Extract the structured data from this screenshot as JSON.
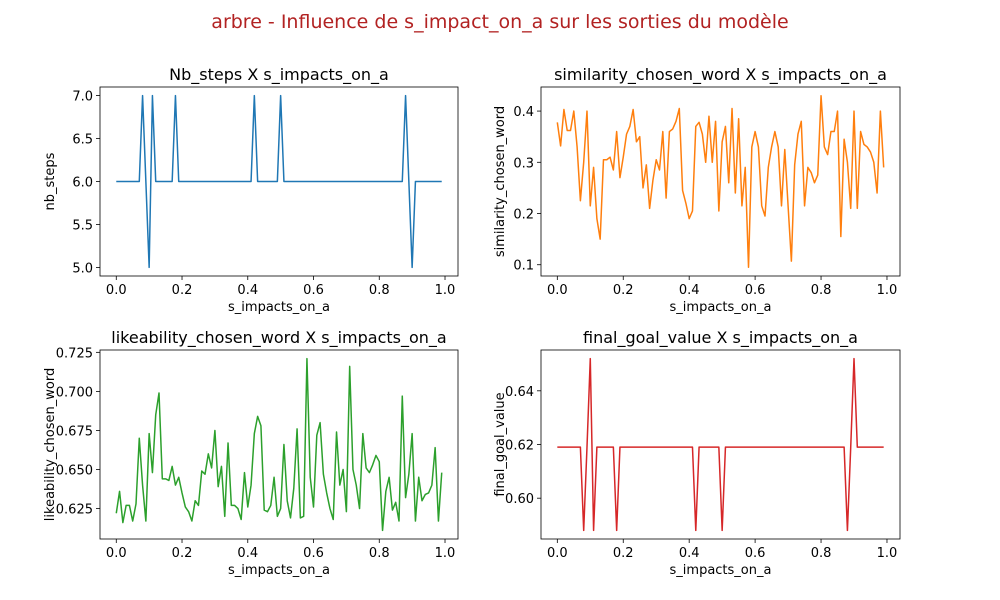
{
  "title": "arbre - Influence de s_impact_on_a sur les sorties du modèle",
  "chart_data": [
    {
      "type": "line",
      "title": "Nb_steps X s_impacts_on_a",
      "x_label": "s_impacts_on_a",
      "y_label": "nb_steps",
      "color": "#1f77b4",
      "x": [
        0,
        0.01,
        0.02,
        0.03,
        0.04,
        0.05,
        0.06,
        0.07,
        0.08,
        0.09,
        0.1,
        0.11,
        0.12,
        0.13,
        0.14,
        0.15,
        0.16,
        0.17,
        0.18,
        0.19,
        0.2,
        0.21,
        0.22,
        0.23,
        0.24,
        0.25,
        0.26,
        0.27,
        0.28,
        0.29,
        0.3,
        0.31,
        0.32,
        0.33,
        0.34,
        0.35,
        0.36,
        0.37,
        0.38,
        0.39,
        0.4,
        0.41,
        0.42,
        0.43,
        0.44,
        0.45,
        0.46,
        0.47,
        0.48,
        0.49,
        0.5,
        0.51,
        0.52,
        0.53,
        0.54,
        0.55,
        0.56,
        0.57,
        0.58,
        0.59,
        0.6,
        0.61,
        0.62,
        0.63,
        0.64,
        0.65,
        0.66,
        0.67,
        0.68,
        0.69,
        0.7,
        0.71,
        0.72,
        0.73,
        0.74,
        0.75,
        0.76,
        0.77,
        0.78,
        0.79,
        0.8,
        0.81,
        0.82,
        0.83,
        0.84,
        0.85,
        0.86,
        0.87,
        0.88,
        0.89,
        0.9,
        0.91,
        0.92,
        0.93,
        0.94,
        0.95,
        0.96,
        0.97,
        0.98,
        0.99
      ],
      "values": [
        6,
        6,
        6,
        6,
        6,
        6,
        6,
        6,
        7,
        6,
        5,
        7,
        6,
        6,
        6,
        6,
        6,
        6,
        7,
        6,
        6,
        6,
        6,
        6,
        6,
        6,
        6,
        6,
        6,
        6,
        6,
        6,
        6,
        6,
        6,
        6,
        6,
        6,
        6,
        6,
        6,
        6,
        7,
        6,
        6,
        6,
        6,
        6,
        6,
        6,
        7,
        6,
        6,
        6,
        6,
        6,
        6,
        6,
        6,
        6,
        6,
        6,
        6,
        6,
        6,
        6,
        6,
        6,
        6,
        6,
        6,
        6,
        6,
        6,
        6,
        6,
        6,
        6,
        6,
        6,
        6,
        6,
        6,
        6,
        6,
        6,
        6,
        6,
        7,
        6,
        5,
        6,
        6,
        6,
        6,
        6,
        6,
        6,
        6,
        6
      ],
      "xlim": [
        -0.0495,
        1.0395
      ],
      "xticks": [
        {
          "value": 0,
          "label": "0.0"
        },
        0.2,
        0.4,
        0.6,
        0.8,
        {
          "value": 1,
          "label": "1.0"
        }
      ],
      "ylim": [
        4.9,
        7.1
      ],
      "yticks": [
        {
          "value": 5,
          "label": "5.0"
        },
        5.5,
        {
          "value": 6,
          "label": "6.0"
        },
        6.5,
        {
          "value": 7,
          "label": "7.0"
        }
      ]
    },
    {
      "type": "line",
      "title": "similarity_chosen_word X s_impacts_on_a",
      "x_label": "s_impacts_on_a",
      "y_label": "similarity_chosen_word",
      "color": "#ff7f0e",
      "x": [
        0,
        0.01,
        0.02,
        0.03,
        0.04,
        0.05,
        0.06,
        0.07,
        0.08,
        0.09,
        0.1,
        0.11,
        0.12,
        0.13,
        0.14,
        0.15,
        0.16,
        0.17,
        0.18,
        0.19,
        0.2,
        0.21,
        0.22,
        0.23,
        0.24,
        0.25,
        0.26,
        0.27,
        0.28,
        0.29,
        0.3,
        0.31,
        0.32,
        0.33,
        0.34,
        0.35,
        0.36,
        0.37,
        0.38,
        0.39,
        0.4,
        0.41,
        0.42,
        0.43,
        0.44,
        0.45,
        0.46,
        0.47,
        0.48,
        0.49,
        0.5,
        0.51,
        0.52,
        0.53,
        0.54,
        0.55,
        0.56,
        0.57,
        0.58,
        0.59,
        0.6,
        0.61,
        0.62,
        0.63,
        0.64,
        0.65,
        0.66,
        0.67,
        0.68,
        0.69,
        0.7,
        0.71,
        0.72,
        0.73,
        0.74,
        0.75,
        0.76,
        0.77,
        0.78,
        0.79,
        0.8,
        0.81,
        0.82,
        0.83,
        0.84,
        0.85,
        0.86,
        0.87,
        0.88,
        0.89,
        0.9,
        0.91,
        0.92,
        0.93,
        0.94,
        0.95,
        0.96,
        0.97,
        0.98,
        0.99
      ],
      "values": [
        0.378,
        0.332,
        0.403,
        0.362,
        0.362,
        0.4,
        0.33,
        0.225,
        0.3,
        0.4,
        0.215,
        0.29,
        0.19,
        0.15,
        0.305,
        0.305,
        0.31,
        0.285,
        0.36,
        0.27,
        0.31,
        0.355,
        0.37,
        0.403,
        0.34,
        0.35,
        0.25,
        0.295,
        0.21,
        0.265,
        0.305,
        0.285,
        0.36,
        0.23,
        0.36,
        0.365,
        0.38,
        0.405,
        0.245,
        0.22,
        0.19,
        0.205,
        0.37,
        0.378,
        0.355,
        0.3,
        0.39,
        0.3,
        0.38,
        0.205,
        0.34,
        0.37,
        0.26,
        0.405,
        0.24,
        0.385,
        0.215,
        0.29,
        0.095,
        0.33,
        0.36,
        0.33,
        0.215,
        0.195,
        0.29,
        0.33,
        0.36,
        0.33,
        0.215,
        0.325,
        0.215,
        0.107,
        0.295,
        0.355,
        0.38,
        0.215,
        0.29,
        0.28,
        0.26,
        0.275,
        0.43,
        0.33,
        0.315,
        0.36,
        0.36,
        0.4,
        0.155,
        0.345,
        0.3,
        0.21,
        0.4,
        0.21,
        0.36,
        0.335,
        0.33,
        0.32,
        0.3,
        0.24,
        0.4,
        0.29
      ],
      "xlim": [
        -0.0495,
        1.0395
      ],
      "xticks": [
        {
          "value": 0,
          "label": "0.0"
        },
        0.2,
        0.4,
        0.6,
        0.8,
        {
          "value": 1,
          "label": "1.0"
        }
      ],
      "ylim": [
        0.078,
        0.447
      ],
      "yticks": [
        0.1,
        0.2,
        0.3,
        0.4
      ]
    },
    {
      "type": "line",
      "title": "likeability_chosen_word X s_impacts_on_a",
      "x_label": "s_impacts_on_a",
      "y_label": "likeability_chosen_word",
      "color": "#2ca02c",
      "x": [
        0,
        0.01,
        0.02,
        0.03,
        0.04,
        0.05,
        0.06,
        0.07,
        0.08,
        0.09,
        0.1,
        0.11,
        0.12,
        0.13,
        0.14,
        0.15,
        0.16,
        0.17,
        0.18,
        0.19,
        0.2,
        0.21,
        0.22,
        0.23,
        0.24,
        0.25,
        0.26,
        0.27,
        0.28,
        0.29,
        0.3,
        0.31,
        0.32,
        0.33,
        0.34,
        0.35,
        0.36,
        0.37,
        0.38,
        0.39,
        0.4,
        0.41,
        0.42,
        0.43,
        0.44,
        0.45,
        0.46,
        0.47,
        0.48,
        0.49,
        0.5,
        0.51,
        0.52,
        0.53,
        0.54,
        0.55,
        0.56,
        0.57,
        0.58,
        0.59,
        0.6,
        0.61,
        0.62,
        0.63,
        0.64,
        0.65,
        0.66,
        0.67,
        0.68,
        0.69,
        0.7,
        0.71,
        0.72,
        0.73,
        0.74,
        0.75,
        0.76,
        0.77,
        0.78,
        0.79,
        0.8,
        0.81,
        0.82,
        0.83,
        0.84,
        0.85,
        0.86,
        0.87,
        0.88,
        0.89,
        0.9,
        0.91,
        0.92,
        0.93,
        0.94,
        0.95,
        0.96,
        0.97,
        0.98,
        0.99
      ],
      "values": [
        0.622,
        0.636,
        0.616,
        0.627,
        0.627,
        0.617,
        0.628,
        0.67,
        0.64,
        0.617,
        0.673,
        0.648,
        0.685,
        0.699,
        0.644,
        0.644,
        0.643,
        0.652,
        0.64,
        0.645,
        0.635,
        0.626,
        0.623,
        0.617,
        0.63,
        0.627,
        0.649,
        0.647,
        0.66,
        0.651,
        0.675,
        0.639,
        0.652,
        0.62,
        0.667,
        0.627,
        0.627,
        0.625,
        0.618,
        0.648,
        0.626,
        0.64,
        0.673,
        0.684,
        0.678,
        0.624,
        0.623,
        0.627,
        0.645,
        0.62,
        0.625,
        0.666,
        0.63,
        0.619,
        0.638,
        0.676,
        0.619,
        0.62,
        0.721,
        0.645,
        0.626,
        0.672,
        0.68,
        0.647,
        0.635,
        0.625,
        0.618,
        0.674,
        0.64,
        0.65,
        0.623,
        0.716,
        0.65,
        0.64,
        0.625,
        0.673,
        0.651,
        0.648,
        0.653,
        0.659,
        0.655,
        0.611,
        0.636,
        0.645,
        0.624,
        0.629,
        0.617,
        0.697,
        0.632,
        0.647,
        0.673,
        0.617,
        0.645,
        0.63,
        0.634,
        0.635,
        0.64,
        0.664,
        0.617,
        0.648
      ],
      "xlim": [
        -0.0495,
        1.0395
      ],
      "xticks": [
        {
          "value": 0,
          "label": "0.0"
        },
        0.2,
        0.4,
        0.6,
        0.8,
        {
          "value": 1,
          "label": "1.0"
        }
      ],
      "ylim": [
        0.6055,
        0.7265
      ],
      "yticks": [
        0.625,
        {
          "value": 0.65,
          "label": "0.650"
        },
        0.675,
        {
          "value": 0.7,
          "label": "0.700"
        },
        0.725
      ]
    },
    {
      "type": "line",
      "title": "final_goal_value X s_impacts_on_a",
      "x_label": "s_impacts_on_a",
      "y_label": "final_goal_value",
      "color": "#d62728",
      "x": [
        0,
        0.01,
        0.02,
        0.03,
        0.04,
        0.05,
        0.06,
        0.07,
        0.08,
        0.09,
        0.1,
        0.11,
        0.12,
        0.13,
        0.14,
        0.15,
        0.16,
        0.17,
        0.18,
        0.19,
        0.2,
        0.21,
        0.22,
        0.23,
        0.24,
        0.25,
        0.26,
        0.27,
        0.28,
        0.29,
        0.3,
        0.31,
        0.32,
        0.33,
        0.34,
        0.35,
        0.36,
        0.37,
        0.38,
        0.39,
        0.4,
        0.41,
        0.42,
        0.43,
        0.44,
        0.45,
        0.46,
        0.47,
        0.48,
        0.49,
        0.5,
        0.51,
        0.52,
        0.53,
        0.54,
        0.55,
        0.56,
        0.57,
        0.58,
        0.59,
        0.6,
        0.61,
        0.62,
        0.63,
        0.64,
        0.65,
        0.66,
        0.67,
        0.68,
        0.69,
        0.7,
        0.71,
        0.72,
        0.73,
        0.74,
        0.75,
        0.76,
        0.77,
        0.78,
        0.79,
        0.8,
        0.81,
        0.82,
        0.83,
        0.84,
        0.85,
        0.86,
        0.87,
        0.88,
        0.89,
        0.9,
        0.91,
        0.92,
        0.93,
        0.94,
        0.95,
        0.96,
        0.97,
        0.98,
        0.99
      ],
      "values": [
        0.619,
        0.619,
        0.619,
        0.619,
        0.619,
        0.619,
        0.619,
        0.619,
        0.588,
        0.619,
        0.652,
        0.588,
        0.619,
        0.619,
        0.619,
        0.619,
        0.619,
        0.619,
        0.588,
        0.619,
        0.619,
        0.619,
        0.619,
        0.619,
        0.619,
        0.619,
        0.619,
        0.619,
        0.619,
        0.619,
        0.619,
        0.619,
        0.619,
        0.619,
        0.619,
        0.619,
        0.619,
        0.619,
        0.619,
        0.619,
        0.619,
        0.619,
        0.588,
        0.619,
        0.619,
        0.619,
        0.619,
        0.619,
        0.619,
        0.619,
        0.588,
        0.619,
        0.619,
        0.619,
        0.619,
        0.619,
        0.619,
        0.619,
        0.619,
        0.619,
        0.619,
        0.619,
        0.619,
        0.619,
        0.619,
        0.619,
        0.619,
        0.619,
        0.619,
        0.619,
        0.619,
        0.619,
        0.619,
        0.619,
        0.619,
        0.619,
        0.619,
        0.619,
        0.619,
        0.619,
        0.619,
        0.619,
        0.619,
        0.619,
        0.619,
        0.619,
        0.619,
        0.619,
        0.588,
        0.619,
        0.652,
        0.619,
        0.619,
        0.619,
        0.619,
        0.619,
        0.619,
        0.619,
        0.619,
        0.619
      ],
      "xlim": [
        -0.0495,
        1.0395
      ],
      "xticks": [
        {
          "value": 0,
          "label": "0.0"
        },
        0.2,
        0.4,
        0.6,
        0.8,
        {
          "value": 1,
          "label": "1.0"
        }
      ],
      "ylim": [
        0.5848,
        0.6552
      ],
      "yticks": [
        {
          "value": 0.6,
          "label": "0.60"
        },
        {
          "value": 0.62,
          "label": "0.62"
        },
        {
          "value": 0.64,
          "label": "0.64"
        }
      ]
    }
  ]
}
